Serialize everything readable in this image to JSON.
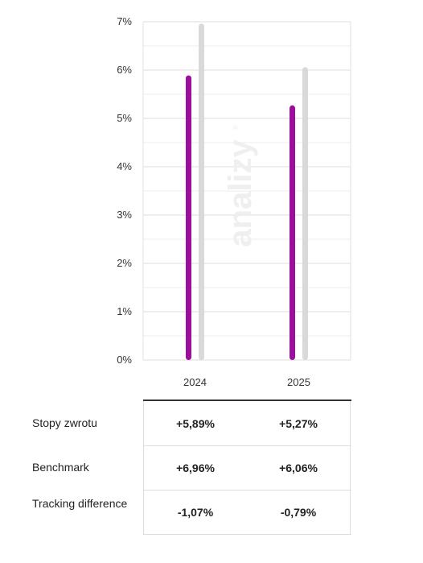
{
  "chart_data": {
    "type": "bar",
    "categories": [
      "2024",
      "2025"
    ],
    "series": [
      {
        "values": [
          5.89,
          5.27
        ]
      },
      {
        "values": [
          6.96,
          6.06
        ]
      }
    ],
    "ylim": [
      0,
      7
    ],
    "yticks": [
      "0%",
      "1%",
      "2%",
      "3%",
      "4%",
      "5%",
      "6%",
      "7%"
    ],
    "grid": true,
    "colors": [
      "#9c0e9c",
      "#d9d9d9"
    ]
  },
  "watermark": {
    "text": "analizy",
    "mark": "®"
  },
  "stats": {
    "rows": [
      {
        "label": "Stopy zwrotu",
        "values": [
          "+5,89%",
          "+5,27%"
        ]
      },
      {
        "label": "Benchmark",
        "values": [
          "+6,96%",
          "+6,06%"
        ]
      },
      {
        "label": "Tracking difference",
        "values": [
          "-1,07%",
          "-0,79%"
        ]
      }
    ]
  }
}
